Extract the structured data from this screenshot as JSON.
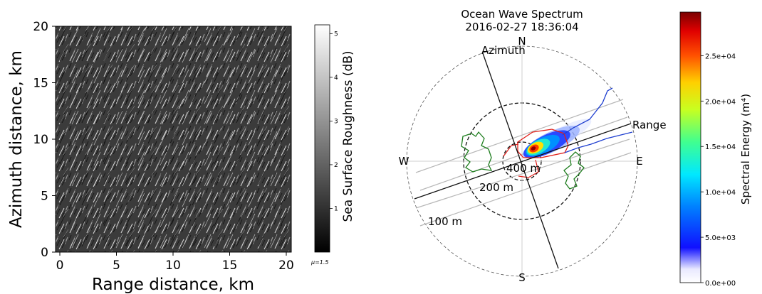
{
  "chart_data": [
    {
      "type": "heatmap",
      "xlabel": "Range distance, km",
      "ylabel": "Azimuth distance, km",
      "xticks": [
        "0",
        "5",
        "10",
        "15",
        "20"
      ],
      "yticks": [
        "0",
        "5",
        "10",
        "15",
        "20"
      ],
      "xlim": [
        0,
        20
      ],
      "ylim": [
        0,
        20
      ],
      "colormap": "gray",
      "colorbar": {
        "label": "Sea Surface Roughness (dB)",
        "ticks": [
          "1",
          "2",
          "3",
          "4",
          "5"
        ],
        "range": [
          0,
          5.2
        ],
        "footnote": "μ=1.5"
      }
    },
    {
      "type": "polar",
      "title": "Ocean Wave Spectrum",
      "subtitle": "2016-02-27 18:36:04",
      "compass": [
        "N",
        "S",
        "W",
        "E"
      ],
      "axis_labels": {
        "azimuth": "Azimuth",
        "range": "Range"
      },
      "wavelength_rings": [
        "400 m",
        "200 m",
        "100 m"
      ],
      "spectrum_peak_bearing_deg": 62,
      "contours": [
        {
          "name": "red",
          "color": "#e0201b"
        },
        {
          "name": "blue",
          "color": "#1f3fd0"
        },
        {
          "name": "green",
          "color": "#1e7d1e"
        }
      ],
      "colorbar": {
        "label": "Spectral Energy (m⁴)",
        "ticks": [
          "0.0e+00",
          "5.0e+03",
          "1.0e+04",
          "1.5e+04",
          "2.0e+04",
          "2.5e+04"
        ],
        "range": [
          0,
          29800
        ],
        "colormap": "jet_white"
      }
    }
  ]
}
